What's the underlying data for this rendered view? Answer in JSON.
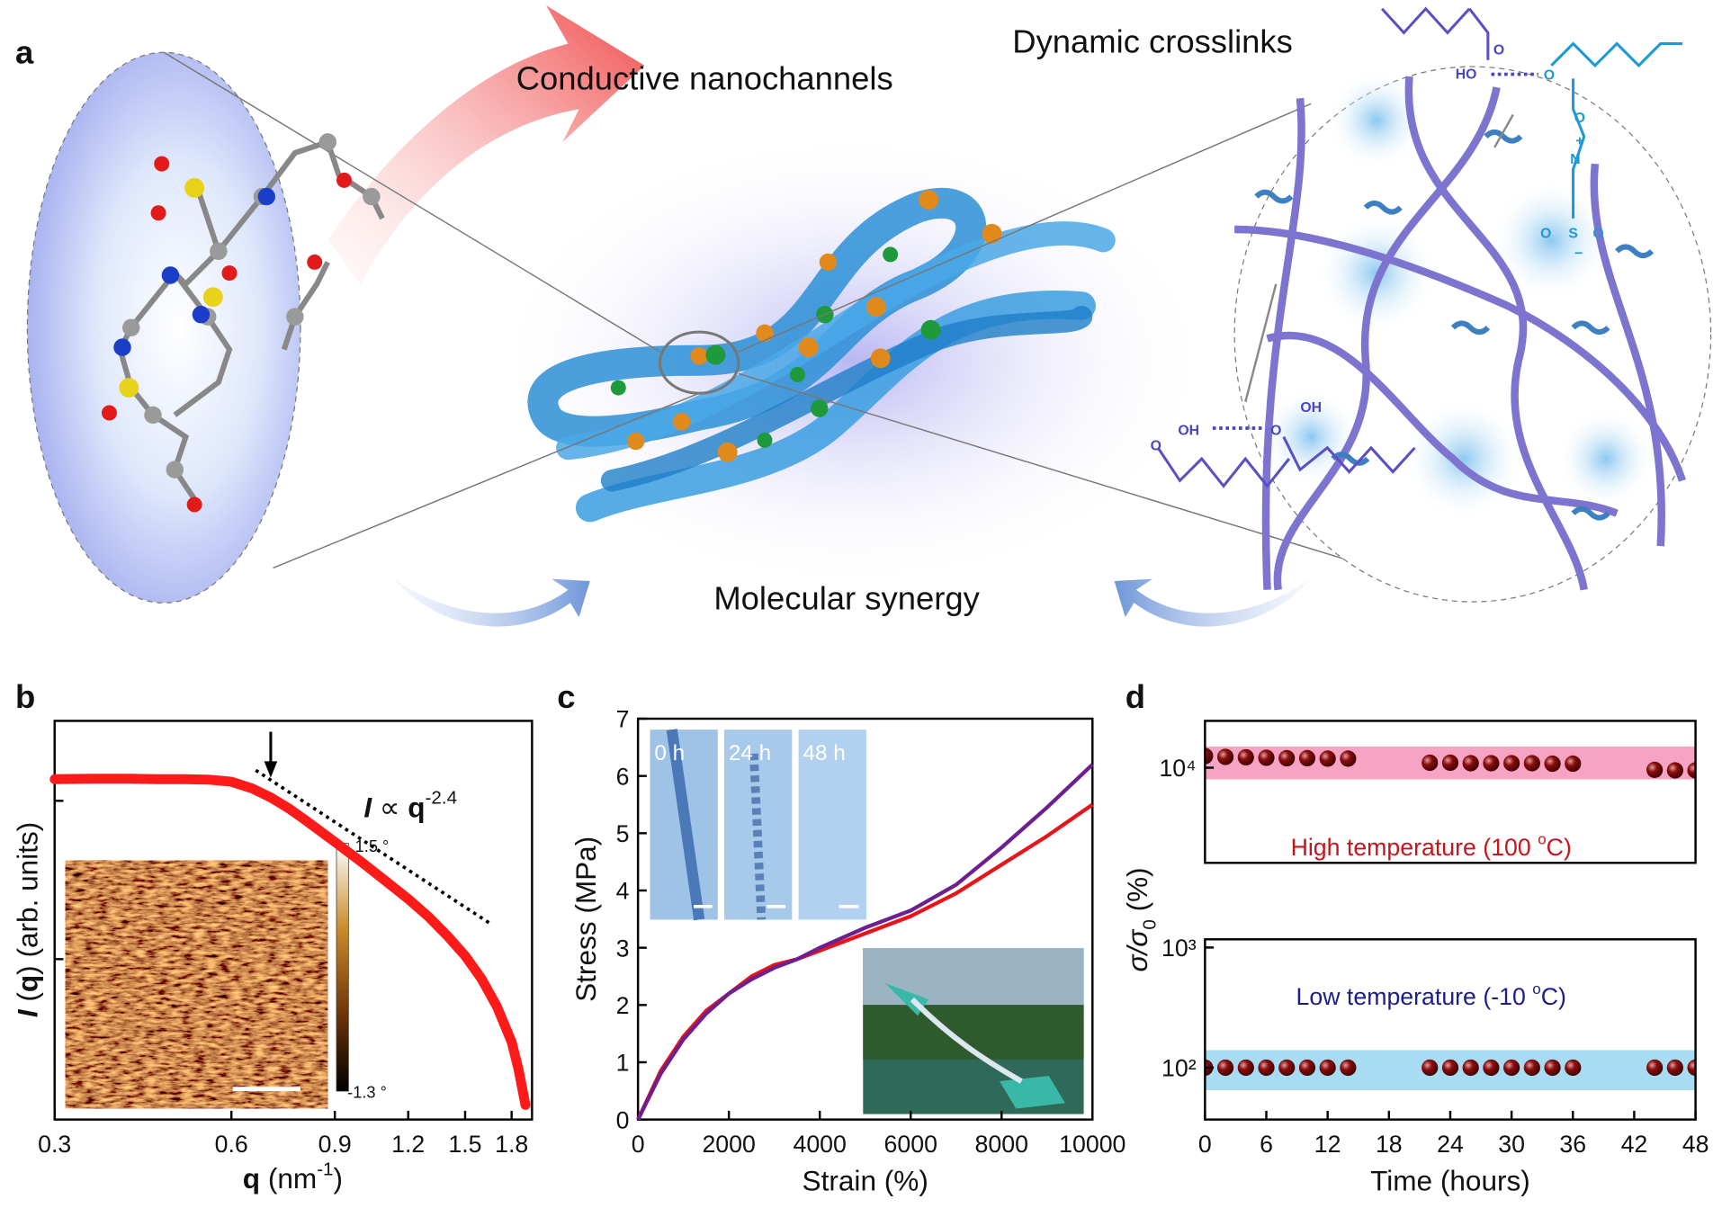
{
  "panel_labels": [
    "a",
    "b",
    "c",
    "d"
  ],
  "schematic": {
    "titles": [
      "Conductive nanochannels",
      "Dynamic crosslinks",
      "Molecular synergy"
    ],
    "chem_labels": [
      "HO",
      "O",
      "O",
      "O",
      "N",
      "+",
      "S",
      "O",
      "O",
      "−",
      "OH",
      "O",
      "O",
      "OH"
    ]
  },
  "chart_data": [
    {
      "type": "line",
      "xscale": "log",
      "yscale": "log",
      "xlabel": [
        "q",
        " (nm",
        "-1",
        ")"
      ],
      "ylabel": [
        "I",
        " (",
        "q",
        ") (arb. units)"
      ],
      "annotation": [
        "I",
        " ∝ ",
        "q",
        "-2.4"
      ],
      "color": "#ff1a1a",
      "x": [
        0.3,
        0.35,
        0.4,
        0.45,
        0.5,
        0.55,
        0.6,
        0.65,
        0.7,
        0.75,
        0.8,
        0.9,
        1.0,
        1.1,
        1.2,
        1.3,
        1.4,
        1.5,
        1.6,
        1.7,
        1.8,
        1.85,
        1.9
      ],
      "values": [
        13.7,
        13.8,
        13.8,
        13.7,
        13.7,
        13.6,
        13.2,
        12,
        10.5,
        9,
        7.6,
        5.5,
        4.1,
        3.1,
        2.4,
        1.85,
        1.4,
        1.05,
        0.75,
        0.5,
        0.3,
        0.2,
        0.12
      ],
      "fit": {
        "x": [
          0.66,
          1.65
        ],
        "values": [
          15.6,
          1.69
        ]
      },
      "arrow_q": 0.7,
      "xlim": [
        0.3,
        1.95
      ],
      "xticks": [
        0.3,
        0.6,
        0.9,
        1.2,
        1.5,
        1.8
      ],
      "ylim": [
        0.097,
        32
      ],
      "yticks": [
        1,
        10
      ],
      "inset": {
        "colorbar_labels": [
          "1.5 °",
          "-1.3 °"
        ]
      }
    },
    {
      "type": "line",
      "xlabel": "Strain (%)",
      "ylabel": "Stress (MPa)",
      "x": [
        0,
        500,
        1000,
        1500,
        2000,
        2500,
        3000,
        3500,
        4000,
        5000,
        6000,
        7000,
        8000,
        9000,
        10000
      ],
      "series": [
        {
          "color": "#e8141b",
          "values": [
            0,
            0.85,
            1.45,
            1.9,
            2.2,
            2.5,
            2.7,
            2.8,
            2.95,
            3.25,
            3.55,
            3.95,
            4.45,
            4.95,
            5.5
          ]
        },
        {
          "color": "#6e1f8f",
          "values": [
            0,
            0.8,
            1.4,
            1.85,
            2.2,
            2.45,
            2.65,
            2.8,
            3.0,
            3.35,
            3.65,
            4.1,
            4.75,
            5.45,
            6.2
          ]
        }
      ],
      "xlim": [
        0,
        10000
      ],
      "xticks": [
        0,
        2000,
        4000,
        6000,
        8000,
        10000
      ],
      "ylim": [
        0,
        7
      ],
      "yticks": [
        0,
        1,
        2,
        3,
        4,
        5,
        6,
        7
      ],
      "inset_labels": [
        "0 h",
        "24 h",
        "48 h"
      ]
    },
    {
      "type": "scatter",
      "yscale": "log",
      "xlabel": "Time (hours)",
      "ylabel": [
        "σ/σ",
        "0",
        " (%)"
      ],
      "color": "#8b0d0d",
      "x": [
        0,
        2,
        4,
        6,
        8,
        10,
        12,
        14,
        22,
        24,
        26,
        28,
        30,
        32,
        34,
        36,
        44,
        46,
        48
      ],
      "xlim": [
        0,
        48
      ],
      "xticks": [
        0,
        6,
        12,
        18,
        24,
        30,
        36,
        42,
        48
      ],
      "panels": [
        {
          "ylim": [
            1620,
            24500
          ],
          "yticks": [
            {
              "value": 10000,
              "label": "10⁴"
            }
          ],
          "values": [
            12500,
            12300,
            12200,
            12100,
            12000,
            12000,
            11900,
            11900,
            11000,
            11000,
            10900,
            10900,
            10900,
            10900,
            10800,
            10800,
            9600,
            9500,
            9500
          ],
          "band": [
            8000,
            15000
          ],
          "band_color": "#f7a3c4",
          "annotation": [
            "High temperature (100 ",
            "o",
            "C)"
          ],
          "annotation_color": "#c4161c"
        },
        {
          "ylim": [
            37,
            1170
          ],
          "yticks": [
            {
              "value": 1000,
              "label": "10³"
            },
            {
              "value": 100,
              "label": "10²"
            }
          ],
          "values": [
            100,
            100,
            100,
            100,
            100,
            100,
            100,
            100,
            100,
            100,
            100,
            100,
            100,
            100,
            100,
            100,
            100,
            100,
            100
          ],
          "band": [
            65,
            140
          ],
          "band_color": "#a8dcf2",
          "annotation": [
            "Low temperature (-10 ",
            "o",
            "C)"
          ],
          "annotation_color": "#1d1d8a"
        }
      ]
    }
  ]
}
